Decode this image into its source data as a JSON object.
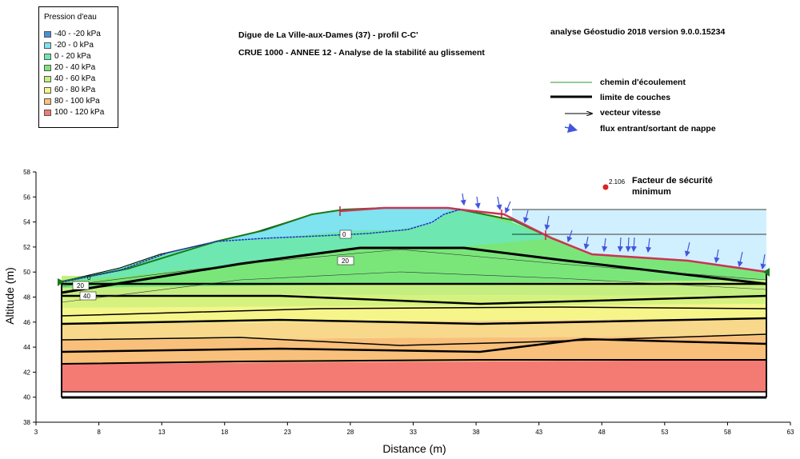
{
  "legend": {
    "title": "Pression d'eau",
    "items": [
      {
        "label": "-40 - -20 kPa",
        "color": "#4a90d9"
      },
      {
        "label": "-20 - 0 kPa",
        "color": "#7fe3f0"
      },
      {
        "label": "0 - 20 kPa",
        "color": "#6ee8b0"
      },
      {
        "label": "20 - 40 kPa",
        "color": "#7ae67a"
      },
      {
        "label": "40 - 60 kPa",
        "color": "#c4ef80"
      },
      {
        "label": "60 - 80 kPa",
        "color": "#f5f58a"
      },
      {
        "label": "80 - 100 kPa",
        "color": "#f8c07a"
      },
      {
        "label": "100 - 120 kPa",
        "color": "#f47a74"
      }
    ]
  },
  "header": {
    "title_line1": "Digue de La Ville-aux-Dames (37) - profil C-C'",
    "title_line2": "CRUE 1000 - ANNEE 12 - Analyse de la stabilité au glissement",
    "software": "analyse Géostudio 2018 version 9.0.0.15234"
  },
  "key": {
    "flow_path": "chemin d'écoulement",
    "layer_limit": "limite de couches",
    "velocity_vector": "vecteur vitesse",
    "groundwater_flux": "flux entrant/sortant de nappe"
  },
  "safety": {
    "value": "2.106",
    "label_line1": "Facteur de sécurité",
    "label_line2": "minimum"
  },
  "contours": {
    "a": "0",
    "b": "20",
    "c": "0",
    "d": "20",
    "e": "40"
  },
  "chart_data": {
    "type": "cross-section",
    "xlabel": "Distance (m)",
    "ylabel": "Altitude (m)",
    "xlim": [
      3,
      63
    ],
    "ylim": [
      38,
      58
    ],
    "x_ticks": [
      "3",
      "8",
      "13",
      "18",
      "23",
      "28",
      "33",
      "38",
      "43",
      "48",
      "53",
      "58",
      "63"
    ],
    "y_ticks": [
      "38",
      "40",
      "42",
      "44",
      "46",
      "48",
      "50",
      "52",
      "54",
      "56",
      "58"
    ],
    "ground_surface": [
      [
        5,
        49.2
      ],
      [
        10,
        50.2
      ],
      [
        15,
        51.5
      ],
      [
        18,
        52.4
      ],
      [
        21,
        53.2
      ],
      [
        25,
        54.6
      ],
      [
        27,
        54.8
      ],
      [
        30,
        55.0
      ],
      [
        33,
        55.1
      ],
      [
        36,
        55.1
      ],
      [
        40,
        54.5
      ],
      [
        43,
        53.0
      ],
      [
        47,
        51.5
      ],
      [
        50,
        51.4
      ],
      [
        55,
        51.0
      ],
      [
        61,
        50.0
      ]
    ],
    "water_level_outside": 55.0,
    "slip_surface_x": [
      27,
      61
    ],
    "safety_factor_point": [
      48.2,
      56.7
    ]
  }
}
